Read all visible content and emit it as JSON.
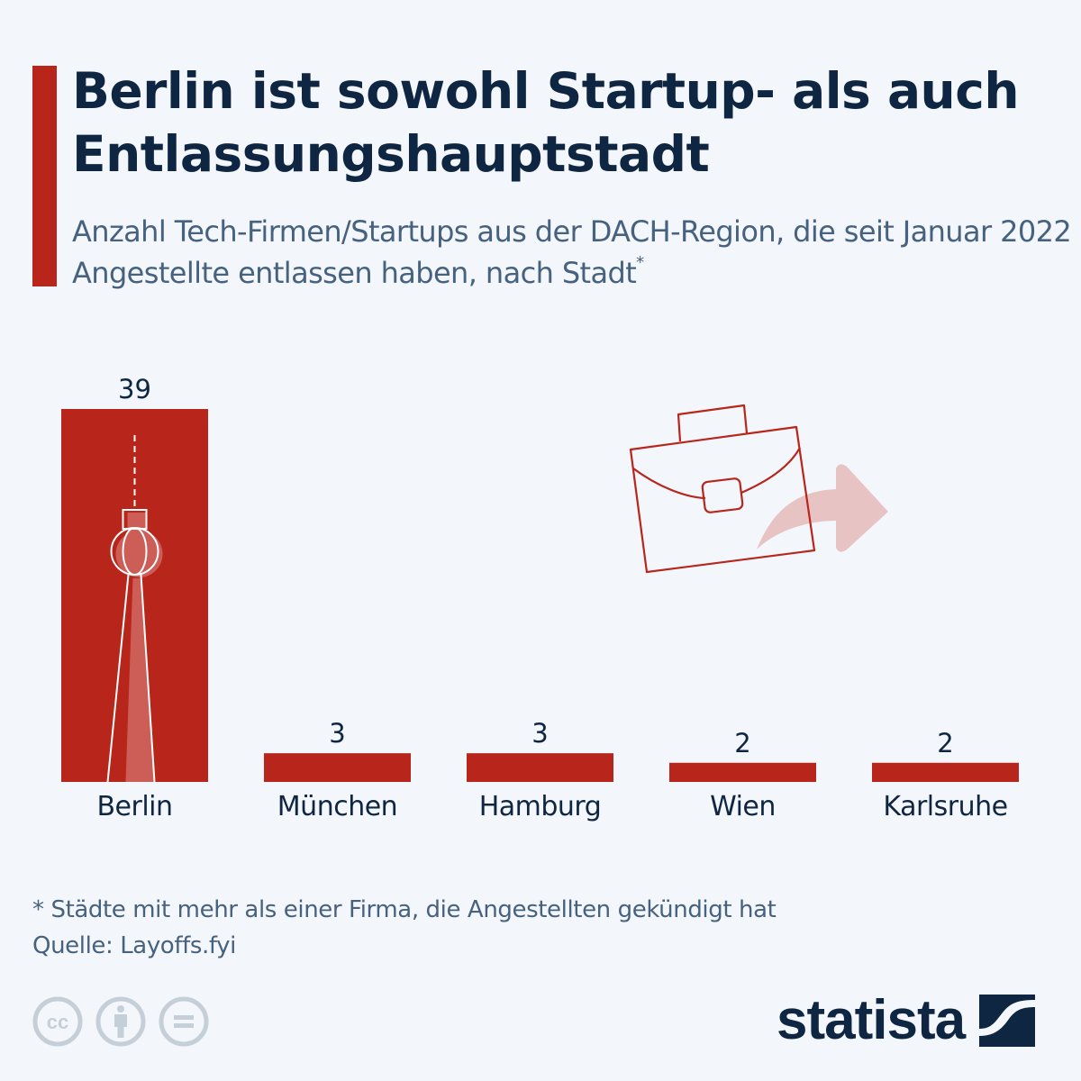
{
  "header": {
    "title": "Berlin ist sowohl Startup- als auch Entlassungshauptstadt",
    "subtitle": "Anzahl Tech-Firmen/Startups aus der DACH-Region, die seit Januar 2022 Angestellte entlassen haben, nach Stadt",
    "subtitle_marker": "*"
  },
  "chart_data": {
    "type": "bar",
    "title": "Berlin ist sowohl Startup- als auch Entlassungshauptstadt",
    "xlabel": "",
    "ylabel": "",
    "categories": [
      "Berlin",
      "München",
      "Hamburg",
      "Wien",
      "Karlsruhe"
    ],
    "values": [
      39,
      3,
      3,
      2,
      2
    ],
    "value_labels": [
      "39",
      "3",
      "3",
      "2",
      "2"
    ],
    "ylim": [
      0,
      39
    ],
    "grid": false,
    "legend": "none",
    "bar_color": "#b8251b"
  },
  "illustrations": {
    "bar_decoration": "tv-tower-icon",
    "side_graphic": "briefcase-arrow-icon"
  },
  "footer": {
    "note": "* Städte mit mehr als einer Firma, die Angestellten gekündigt hat",
    "source": "Quelle: Layoffs.fyi",
    "license_icons": [
      "cc-icon",
      "attribution-icon",
      "no-derivatives-icon"
    ],
    "brand": "statista"
  },
  "colors": {
    "accent": "#b8251b",
    "title": "#0f2642",
    "subtitle": "#47627f",
    "background": "#f3f6fa",
    "icon_grey": "#c5cfd8",
    "arrow_pink": "#e8c3c3"
  }
}
